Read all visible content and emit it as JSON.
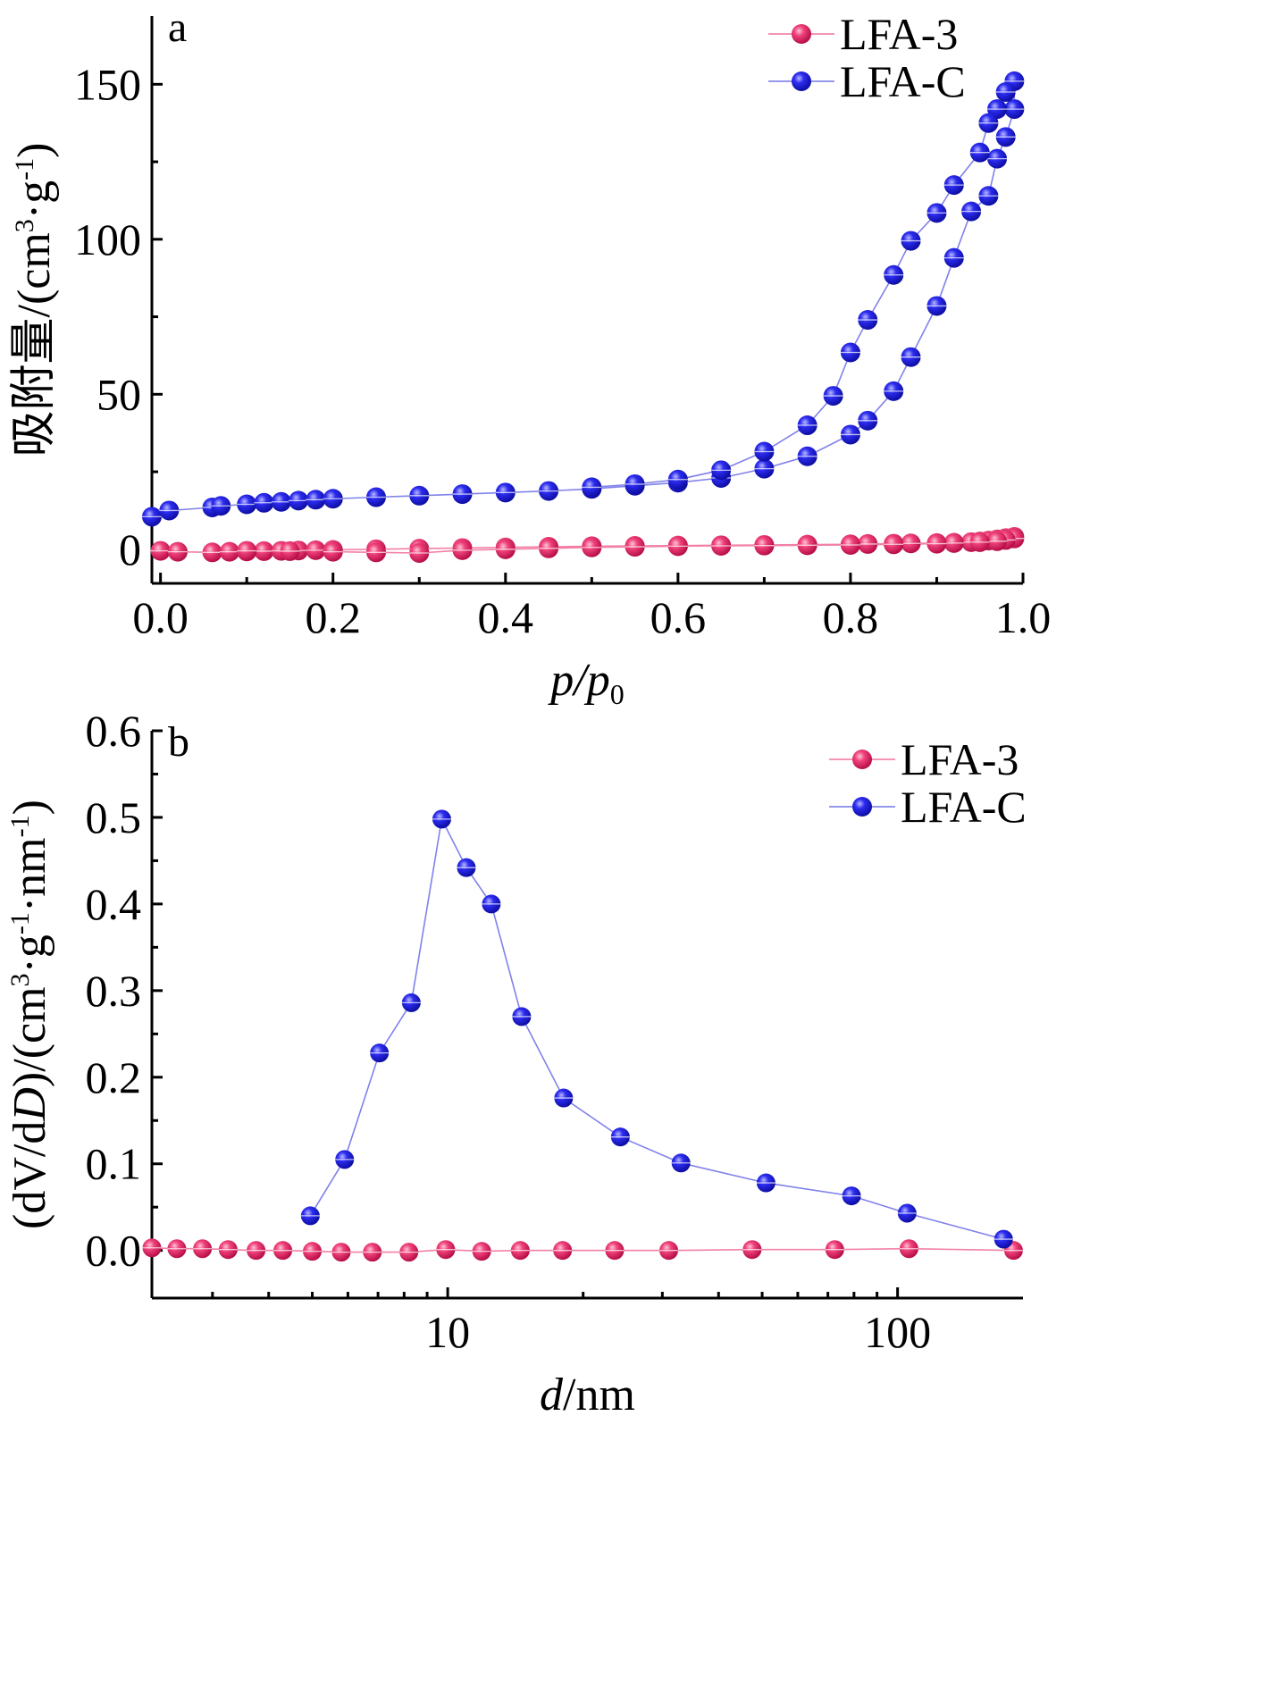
{
  "chart_data": [
    {
      "type": "scatter",
      "panel_label": "a",
      "xlabel": "p/p0",
      "xlabel_parts": {
        "main": "p/p",
        "sub": "0"
      },
      "ylabel": "吸附量/(cm3·g-1)",
      "ylabel_parts": {
        "pre": "吸附量/(cm",
        "sup1": "3",
        "mid": "·g",
        "sup2": "-1",
        "post": ")"
      },
      "xlim": [
        -0.01,
        1.0
      ],
      "ylim": [
        -11,
        172
      ],
      "xticks": [
        0.0,
        0.2,
        0.4,
        0.6,
        0.8,
        1.0
      ],
      "xtick_labels": [
        "0.0",
        "0.2",
        "0.4",
        "0.6",
        "0.8",
        "1.0"
      ],
      "yticks": [
        0,
        50,
        100,
        150
      ],
      "ytick_labels": [
        "0",
        "50",
        "100",
        "150"
      ],
      "yminor": [
        25,
        75,
        125
      ],
      "legend_position": "top-right",
      "series": [
        {
          "name": "LFA-3",
          "color": "#e8175d",
          "x": [
            0.0,
            0.02,
            0.06,
            0.08,
            0.1,
            0.12,
            0.14,
            0.16,
            0.18,
            0.2,
            0.25,
            0.3,
            0.35,
            0.4,
            0.45,
            0.5,
            0.55,
            0.6,
            0.65,
            0.7,
            0.75,
            0.8,
            0.82,
            0.85,
            0.87,
            0.9,
            0.92,
            0.94,
            0.95,
            0.96,
            0.97,
            0.98,
            0.99,
            0.99,
            0.98,
            0.97,
            0.95,
            0.92,
            0.9,
            0.85,
            0.8,
            0.75,
            0.7,
            0.65,
            0.6,
            0.55,
            0.5,
            0.45,
            0.4,
            0.35,
            0.3,
            0.25,
            0.2,
            0.15,
            0.1
          ],
          "y": [
            -0.5,
            -0.8,
            -1.0,
            -0.8,
            -0.7,
            -0.6,
            -0.5,
            -0.4,
            -0.3,
            -0.2,
            0.0,
            0.2,
            0.4,
            0.6,
            0.8,
            1.0,
            1.1,
            1.2,
            1.3,
            1.4,
            1.5,
            1.6,
            1.7,
            1.8,
            1.9,
            2.0,
            2.1,
            2.3,
            2.5,
            2.8,
            3.2,
            3.6,
            4.0,
            3.5,
            3.0,
            2.6,
            2.3,
            2.0,
            1.8,
            1.6,
            1.4,
            1.3,
            1.2,
            1.1,
            1.0,
            0.8,
            0.6,
            0.3,
            0.0,
            -0.3,
            -1.2,
            -1.0,
            -0.8,
            -0.6,
            -0.5
          ]
        },
        {
          "name": "LFA-C",
          "color": "#1a1adb",
          "x": [
            -0.01,
            0.01,
            0.06,
            0.07,
            0.1,
            0.12,
            0.14,
            0.16,
            0.18,
            0.2,
            0.25,
            0.3,
            0.35,
            0.4,
            0.45,
            0.5,
            0.55,
            0.6,
            0.65,
            0.7,
            0.75,
            0.8,
            0.82,
            0.85,
            0.87,
            0.9,
            0.92,
            0.94,
            0.96,
            0.97,
            0.98,
            0.99,
            0.99,
            0.98,
            0.97,
            0.96,
            0.95,
            0.92,
            0.9,
            0.87,
            0.85,
            0.82,
            0.8,
            0.78,
            0.75,
            0.7,
            0.65,
            0.6,
            0.55,
            0.5
          ],
          "y": [
            10.5,
            12.5,
            13.5,
            14.0,
            14.5,
            15.0,
            15.3,
            15.7,
            16.0,
            16.3,
            16.8,
            17.3,
            17.8,
            18.3,
            18.8,
            19.5,
            20.5,
            21.5,
            23.0,
            26.0,
            30.0,
            37.0,
            41.5,
            51.0,
            62.0,
            78.5,
            94.0,
            109.0,
            114.0,
            126.0,
            133.0,
            142.0,
            151.0,
            147.5,
            142.0,
            137.5,
            128.0,
            117.5,
            108.5,
            99.5,
            88.5,
            74.0,
            63.5,
            49.5,
            40.0,
            31.5,
            25.5,
            22.5,
            21.0,
            20.0
          ]
        }
      ]
    },
    {
      "type": "line",
      "panel_label": "b",
      "xlabel": "d/nm",
      "xlabel_parts": {
        "main": "d",
        "post": "/nm"
      },
      "ylabel": "(dV/dD)/(cm3·g-1·nm-1)",
      "ylabel_parts": {
        "pre": "(dV/d",
        "italic": "D",
        "mid1": ")/(cm",
        "sup1": "3",
        "mid2": "·g",
        "sup2": "-1",
        "mid3": "·nm",
        "sup3": "-1",
        "post": ")"
      },
      "xscale": "log",
      "xlim": [
        2.2,
        190
      ],
      "ylim": [
        -0.055,
        0.6
      ],
      "xticks": [
        10,
        100
      ],
      "xtick_labels": [
        "10",
        "100"
      ],
      "xminor": [
        3,
        4,
        5,
        6,
        7,
        8,
        9,
        20,
        30,
        40,
        50,
        60,
        70,
        80,
        90
      ],
      "yticks": [
        0.0,
        0.1,
        0.2,
        0.3,
        0.4,
        0.5,
        0.6
      ],
      "ytick_labels": [
        "0.0",
        "0.1",
        "0.2",
        "0.3",
        "0.4",
        "0.5",
        "0.6"
      ],
      "yminor": [
        0.05,
        0.15,
        0.25,
        0.35,
        0.45,
        0.55
      ],
      "legend_position": "top-right",
      "series": [
        {
          "name": "LFA-3",
          "color": "#e8175d",
          "x": [
            2.2,
            2.5,
            2.85,
            3.25,
            3.75,
            4.3,
            5.0,
            5.8,
            6.8,
            8.2,
            9.9,
            11.9,
            14.5,
            18.0,
            23.5,
            31.0,
            47.5,
            72.5,
            106,
            181
          ],
          "y": [
            0.003,
            0.002,
            0.002,
            0.001,
            0.0,
            0.0,
            -0.001,
            -0.002,
            -0.002,
            -0.002,
            0.001,
            -0.001,
            0.0,
            0.0,
            0.0,
            0.0,
            0.001,
            0.001,
            0.002,
            0.0
          ]
        },
        {
          "name": "LFA-C",
          "color": "#1a1adb",
          "x": [
            4.95,
            5.9,
            7.05,
            8.3,
            9.7,
            11.0,
            12.5,
            14.6,
            18.1,
            24.2,
            33.0,
            51.0,
            79.0,
            105,
            172
          ],
          "y": [
            0.04,
            0.105,
            0.228,
            0.286,
            0.498,
            0.442,
            0.4,
            0.27,
            0.176,
            0.131,
            0.101,
            0.078,
            0.063,
            0.043,
            0.013
          ]
        }
      ]
    }
  ]
}
